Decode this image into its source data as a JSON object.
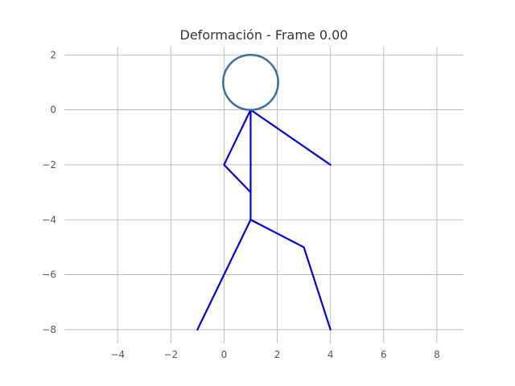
{
  "chart_data": {
    "type": "line",
    "title": "Deformación - Frame 0.00",
    "xlabel": "",
    "ylabel": "",
    "xlim": [
      -6,
      9
    ],
    "ylim": [
      -8.5,
      2.3
    ],
    "xticks": [
      -4,
      -2,
      0,
      2,
      4,
      6,
      8
    ],
    "yticks": [
      2,
      0,
      -2,
      -4,
      -6,
      -8
    ],
    "xtick_labels": [
      "−4",
      "−2",
      "0",
      "2",
      "4",
      "6",
      "8"
    ],
    "ytick_labels": [
      "2",
      "0",
      "−2",
      "−4",
      "−6",
      "−8"
    ],
    "grid": true,
    "series": [
      {
        "values": [
          [
            1,
            0
          ],
          [
            1,
            -4
          ]
        ]
      },
      {
        "values": [
          [
            1,
            0
          ],
          [
            0,
            -2
          ],
          [
            1,
            -3
          ]
        ]
      },
      {
        "values": [
          [
            1,
            0
          ],
          [
            4,
            -2
          ]
        ]
      },
      {
        "values": [
          [
            1,
            -4
          ],
          [
            -1,
            -8
          ]
        ]
      },
      {
        "values": [
          [
            1,
            -4
          ],
          [
            3,
            -5
          ],
          [
            4,
            -8
          ]
        ]
      }
    ],
    "head": {
      "center": [
        1,
        1
      ],
      "radius": 1
    },
    "colors": {
      "limbs": "#0000dd",
      "head": "#3a6ea5"
    }
  }
}
